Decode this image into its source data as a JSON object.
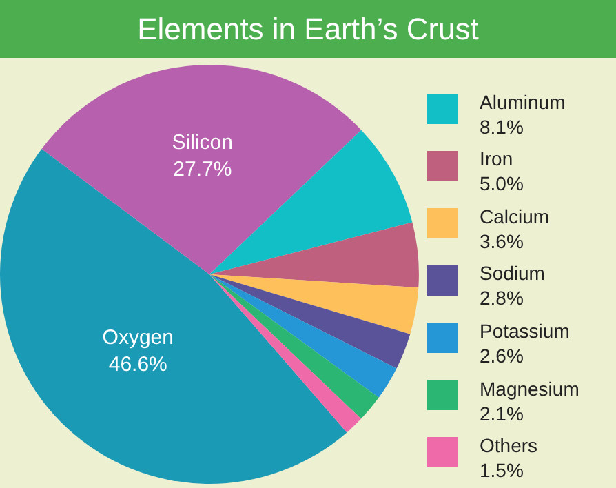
{
  "chart_data": {
    "type": "pie",
    "title": "Elements in Earth’s Crust",
    "categories": [
      "Oxygen",
      "Silicon",
      "Aluminum",
      "Iron",
      "Calcium",
      "Sodium",
      "Potassium",
      "Magnesium",
      "Others"
    ],
    "values": [
      46.6,
      27.7,
      8.1,
      5.0,
      3.6,
      2.8,
      2.6,
      2.1,
      1.5
    ],
    "value_labels": [
      "46.6%",
      "27.7%",
      "8.1%",
      "5.0%",
      "3.6%",
      "2.8%",
      "2.6%",
      "2.1%",
      "1.5%"
    ],
    "colors": [
      "#1b9ab6",
      "#b660ae",
      "#13bfc6",
      "#c0607f",
      "#fdc05a",
      "#5b5399",
      "#2596d6",
      "#2bb673",
      "#ef6aa8"
    ],
    "legend": "right"
  }
}
